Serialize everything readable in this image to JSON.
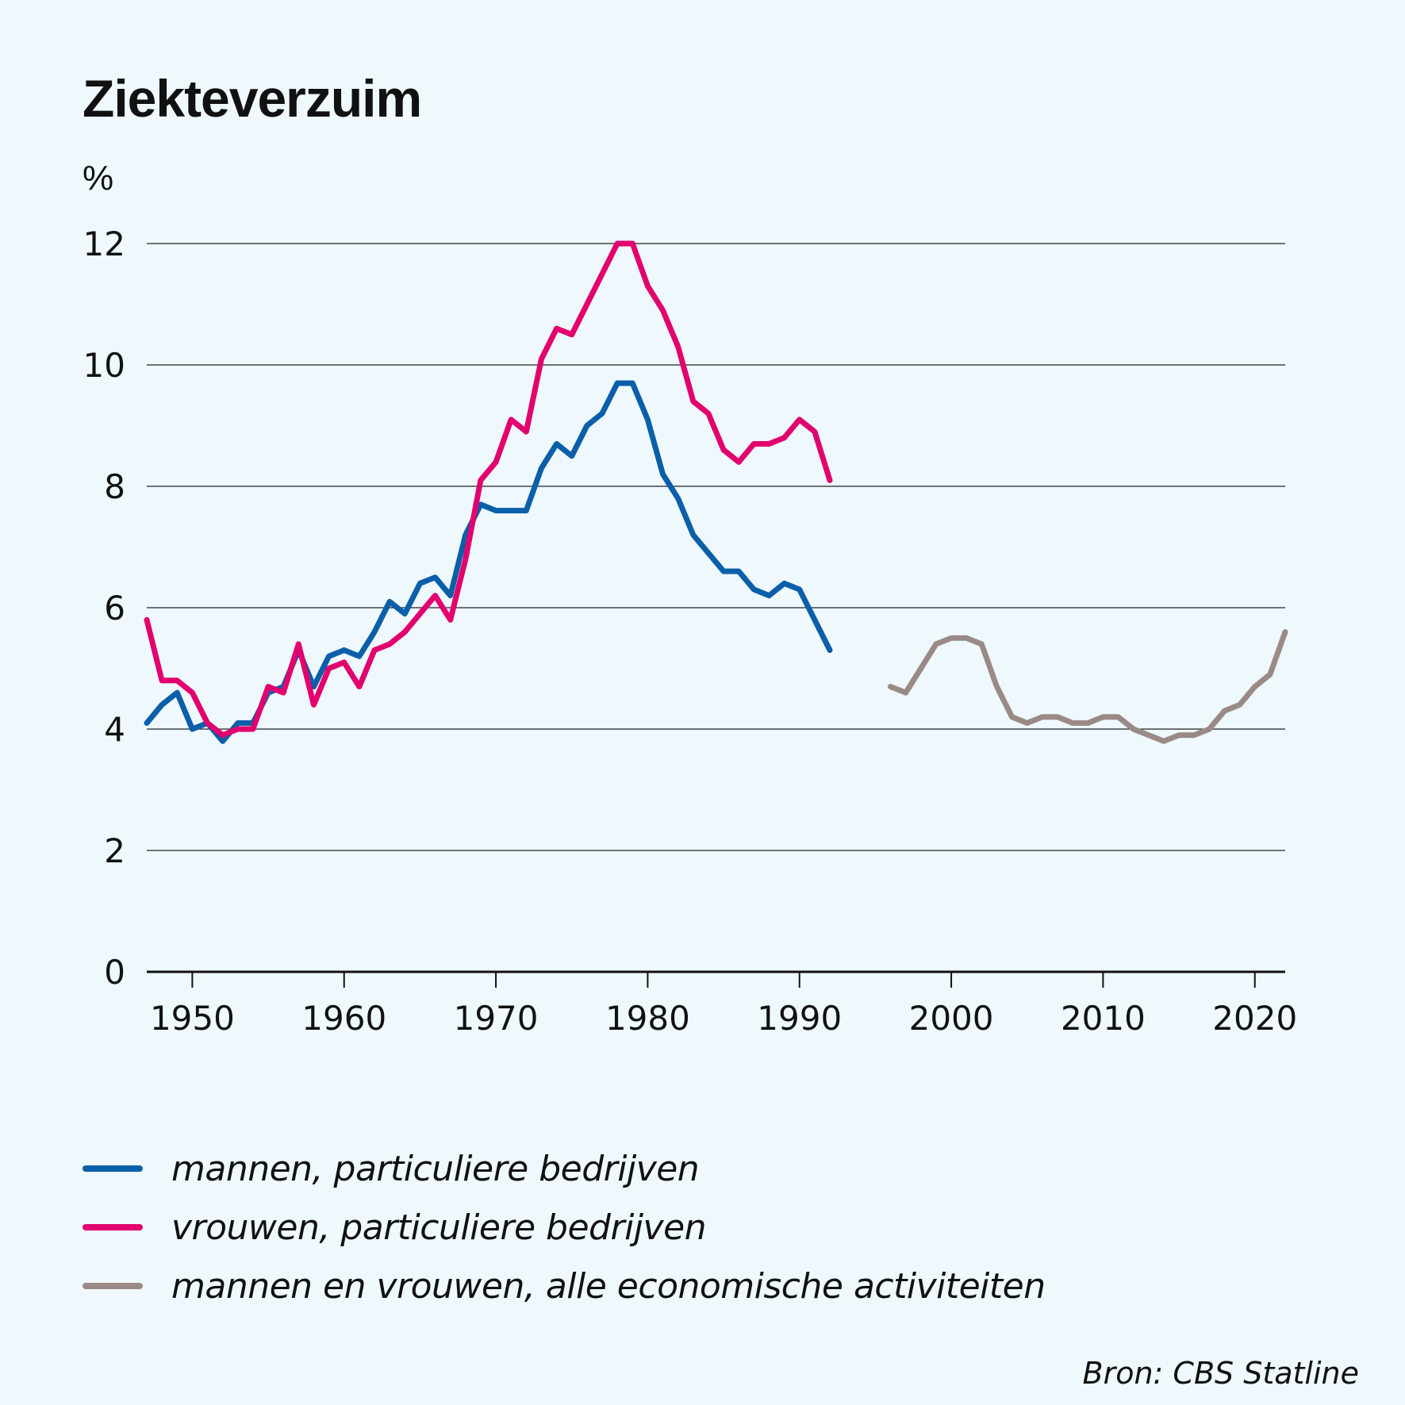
{
  "title": "Ziekteverzuim",
  "unit_label": "%",
  "source": "Bron: CBS Statline",
  "colors": {
    "men": "#0a5fa8",
    "women": "#e2006e",
    "all": "#9a8a86",
    "grid": "#222222",
    "axis": "#111111"
  },
  "chart_data": {
    "type": "line",
    "title": "Ziekteverzuim",
    "xlabel": "",
    "ylabel": "%",
    "xlim": [
      1947,
      2022
    ],
    "ylim": [
      0,
      12
    ],
    "yticks": [
      0,
      2,
      4,
      6,
      8,
      10,
      12
    ],
    "xticks": [
      1950,
      1960,
      1970,
      1980,
      1990,
      2000,
      2010,
      2020
    ],
    "legend_position": "bottom",
    "series": [
      {
        "name": "mannen, particuliere bedrijven",
        "color": "#0a5fa8",
        "x": [
          1947,
          1948,
          1949,
          1950,
          1951,
          1952,
          1953,
          1954,
          1955,
          1956,
          1957,
          1958,
          1959,
          1960,
          1961,
          1962,
          1963,
          1964,
          1965,
          1966,
          1967,
          1968,
          1969,
          1970,
          1971,
          1972,
          1973,
          1974,
          1975,
          1976,
          1977,
          1978,
          1979,
          1980,
          1981,
          1982,
          1983,
          1984,
          1985,
          1986,
          1987,
          1988,
          1989,
          1990,
          1991,
          1992
        ],
        "values": [
          4.1,
          4.4,
          4.6,
          4.0,
          4.1,
          3.8,
          4.1,
          4.1,
          4.6,
          4.7,
          5.3,
          4.7,
          5.2,
          5.3,
          5.2,
          5.6,
          6.1,
          5.9,
          6.4,
          6.5,
          6.2,
          7.2,
          7.7,
          7.6,
          7.6,
          7.6,
          8.3,
          8.7,
          8.5,
          9.0,
          9.2,
          9.7,
          9.7,
          9.1,
          8.2,
          7.8,
          7.2,
          6.9,
          6.6,
          6.6,
          6.3,
          6.2,
          6.4,
          6.3,
          5.8,
          5.3
        ]
      },
      {
        "name": "vrouwen, particuliere bedrijven",
        "color": "#e2006e",
        "x": [
          1947,
          1948,
          1949,
          1950,
          1951,
          1952,
          1953,
          1954,
          1955,
          1956,
          1957,
          1958,
          1959,
          1960,
          1961,
          1962,
          1963,
          1964,
          1965,
          1966,
          1967,
          1968,
          1969,
          1970,
          1971,
          1972,
          1973,
          1974,
          1975,
          1976,
          1977,
          1978,
          1979,
          1980,
          1981,
          1982,
          1983,
          1984,
          1985,
          1986,
          1987,
          1988,
          1989,
          1990,
          1991,
          1992
        ],
        "values": [
          5.8,
          4.8,
          4.8,
          4.6,
          4.1,
          3.9,
          4.0,
          4.0,
          4.7,
          4.6,
          5.4,
          4.4,
          5.0,
          5.1,
          4.7,
          5.3,
          5.4,
          5.6,
          5.9,
          6.2,
          5.8,
          6.8,
          8.1,
          8.4,
          9.1,
          8.9,
          10.1,
          10.6,
          10.5,
          11.0,
          11.5,
          12.0,
          12.0,
          11.3,
          10.9,
          10.3,
          9.4,
          9.2,
          8.6,
          8.4,
          8.7,
          8.7,
          8.8,
          9.1,
          8.9,
          8.1
        ]
      },
      {
        "name": "mannen en vrouwen, alle economische activiteiten",
        "color": "#9a8a86",
        "x": [
          1996,
          1997,
          1998,
          1999,
          2000,
          2001,
          2002,
          2003,
          2004,
          2005,
          2006,
          2007,
          2008,
          2009,
          2010,
          2011,
          2012,
          2013,
          2014,
          2015,
          2016,
          2017,
          2018,
          2019,
          2020,
          2021,
          2022
        ],
        "values": [
          4.7,
          4.6,
          5.0,
          5.4,
          5.5,
          5.5,
          5.4,
          4.7,
          4.2,
          4.1,
          4.2,
          4.2,
          4.1,
          4.1,
          4.2,
          4.2,
          4.0,
          3.9,
          3.8,
          3.9,
          3.9,
          4.0,
          4.3,
          4.4,
          4.7,
          4.9,
          5.6
        ]
      }
    ]
  }
}
